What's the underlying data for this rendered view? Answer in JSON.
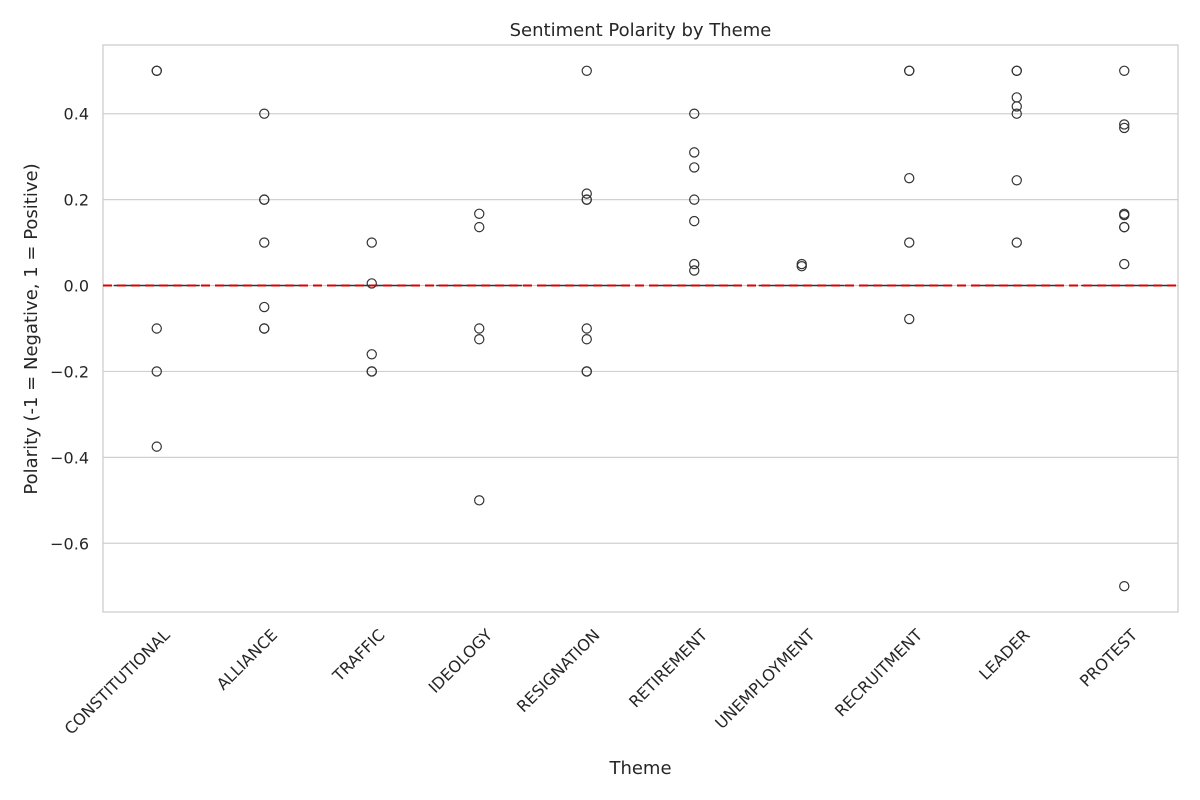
{
  "chart_data": {
    "type": "box",
    "title": "Sentiment Polarity by Theme",
    "xlabel": "Theme",
    "ylabel": "Polarity (-1 = Negative, 1 = Positive)",
    "ylim": [
      -0.76,
      0.56
    ],
    "yticks": [
      -0.6,
      -0.4,
      -0.2,
      0.0,
      0.2,
      0.4
    ],
    "ytick_labels": [
      "−0.6",
      "−0.4",
      "−0.2",
      "0.0",
      "0.2",
      "0.4"
    ],
    "grid": true,
    "reference_line": {
      "y": 0.0,
      "color": "#e00000",
      "style": "dashed"
    },
    "categories": [
      "CONSTITUTIONAL",
      "ALLIANCE",
      "TRAFFIC",
      "IDEOLOGY",
      "RESIGNATION",
      "RETIREMENT",
      "UNEMPLOYMENT",
      "RECRUITMENT",
      "LEADER",
      "PROTEST"
    ],
    "medians": [
      0,
      0,
      0,
      0,
      0,
      0,
      0,
      0,
      0,
      0
    ],
    "outliers": [
      [
        0.5,
        0.5,
        -0.1,
        -0.2,
        -0.375
      ],
      [
        0.4,
        0.2,
        0.2,
        0.1,
        -0.05,
        -0.1,
        -0.1
      ],
      [
        0.1,
        0.005,
        -0.16,
        -0.2,
        -0.2
      ],
      [
        0.167,
        0.136,
        -0.1,
        -0.125,
        -0.5
      ],
      [
        0.5,
        0.214,
        0.2,
        0.2,
        -0.1,
        -0.125,
        -0.2,
        -0.2
      ],
      [
        0.4,
        0.31,
        0.275,
        0.2,
        0.15,
        0.05,
        0.035
      ],
      [
        0.05,
        0.045
      ],
      [
        0.5,
        0.5,
        0.25,
        0.1,
        -0.078
      ],
      [
        0.5,
        0.5,
        0.438,
        0.417,
        0.4,
        0.245,
        0.1
      ],
      [
        0.5,
        0.375,
        0.367,
        0.167,
        0.164,
        0.136,
        0.136,
        0.05,
        -0.7
      ]
    ]
  }
}
